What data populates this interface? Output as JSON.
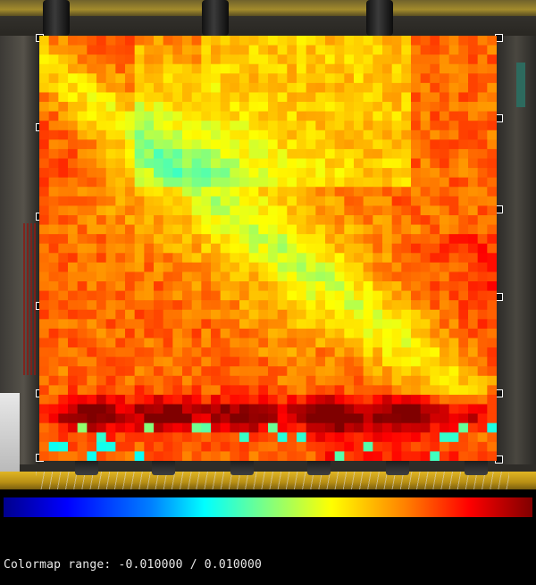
{
  "colormap": {
    "label": "Colormap range:",
    "min": "-0.010000",
    "separator": "/",
    "max": "0.010000"
  },
  "colors": {
    "low": "#00008c",
    "mid": "#80ff80",
    "high": "#800000"
  }
}
